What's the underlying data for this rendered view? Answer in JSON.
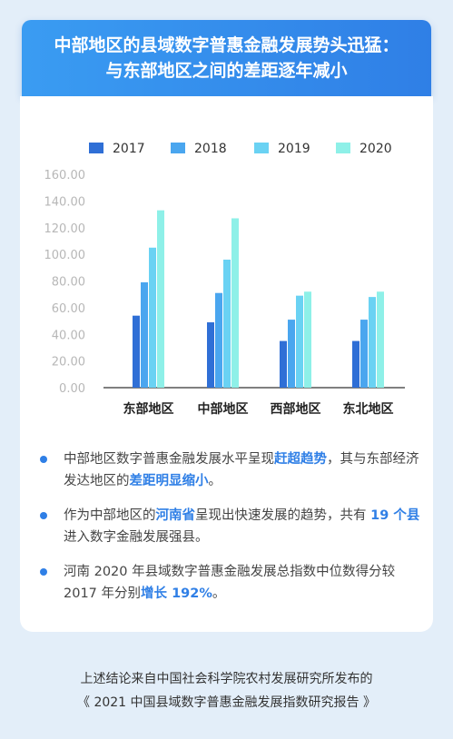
{
  "header": {
    "title_line1": "中部地区的县域数字普惠金融发展势头迅猛：",
    "title_line2": "与东部地区之间的差距逐年减小"
  },
  "colors": {
    "s2017": "#2f6fd6",
    "s2018": "#4aa6ef",
    "s2019": "#6ad2f3",
    "s2020": "#8ef0e8",
    "accent": "#2f7fe6"
  },
  "chart_data": {
    "type": "bar",
    "categories": [
      "东部地区",
      "中部地区",
      "西部地区",
      "东北地区"
    ],
    "series": [
      {
        "name": "2017",
        "values": [
          54,
          49,
          35,
          35
        ]
      },
      {
        "name": "2018",
        "values": [
          79,
          71,
          51,
          51
        ]
      },
      {
        "name": "2019",
        "values": [
          105,
          96,
          69,
          68
        ]
      },
      {
        "name": "2020",
        "values": [
          133,
          127,
          72,
          72
        ]
      }
    ],
    "yticks": [
      "0.00",
      "20.00",
      "40.00",
      "60.00",
      "80.00",
      "100.00",
      "120.00",
      "140.00",
      "160.00"
    ],
    "ylim": [
      0,
      160
    ],
    "legend_position": "top",
    "grid": false
  },
  "bullets": [
    [
      {
        "text": "中部地区数字普惠金融发展水平呈现"
      },
      {
        "text": "赶超趋势",
        "hl": true
      },
      {
        "text": "，其与东部经济发达地区的"
      },
      {
        "text": "差距明显缩小",
        "hl": true
      },
      {
        "text": "。"
      }
    ],
    [
      {
        "text": "作为中部地区的"
      },
      {
        "text": "河南省",
        "hl": true
      },
      {
        "text": "呈现出快速发展的趋势，共有 "
      },
      {
        "text": "19 个县",
        "hl": true
      },
      {
        "text": "进入数字金融发展强县。"
      }
    ],
    [
      {
        "text": "河南 2020 年县域数字普惠金融发展总指数中位数得分较 2017 年分别"
      },
      {
        "text": "增长 192%",
        "hl": true
      },
      {
        "text": "。"
      }
    ]
  ],
  "footer": {
    "line1": "上述结论来自中国社会科学院农村发展研究所发布的",
    "line2": "《 2021 中国县域数字普惠金融发展指数研究报告 》"
  }
}
